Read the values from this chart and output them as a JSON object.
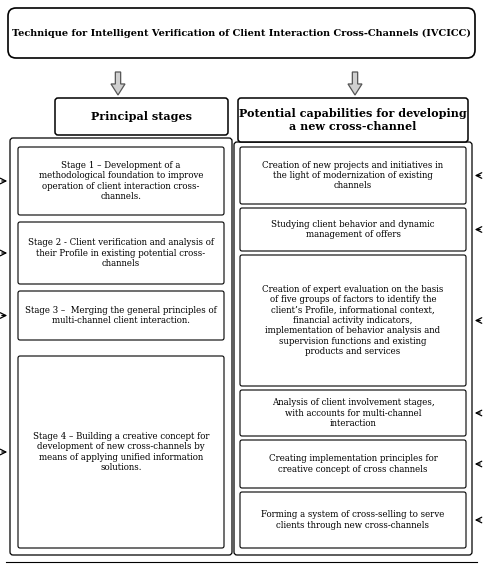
{
  "title": "Technique for Intelligent Verification of Client Interaction Cross-Channels (IVCICC)",
  "left_header": "Principal stages",
  "right_header": "Potential capabilities for developing\na new cross-channel",
  "left_boxes": [
    "Stage 1 – Development of a\nmethodological foundation to improve\noperation of client interaction cross-\nchannels.",
    "Stage 2 - Client verification and analysis of\ntheir Profile in existing potential cross-\nchannels",
    "Stage 3 –  Merging the general principles of\nmulti-channel client interaction.",
    "Stage 4 – Building a creative concept for\ndevelopment of new cross-channels by\nmeans of applying unified information\nsolutions."
  ],
  "right_boxes": [
    "Creation of new projects and initiatives in\nthe light of modernization of existing\nchannels",
    "Studying client behavior and dynamic\nmanagement of offers",
    "Creation of expert evaluation on the basis\nof five groups of factors to identify the\nclient’s Profile, informational context,\nfinancial activity indicators,\nimplementation of behavior analysis and\nsupervision functions and existing\nproducts and services",
    "Analysis of client involvement stages,\nwith accounts for multi-channel\ninteraction",
    "Creating implementation principles for\ncreative concept of cross channels",
    "Forming a system of cross-selling to serve\nclients through new cross-channels"
  ],
  "bg_color": "#ffffff",
  "box_edge_color": "#000000",
  "title_box_color": "#ffffff",
  "font_size_title": 7.0,
  "font_size_header": 8.0,
  "font_size_body": 6.2
}
